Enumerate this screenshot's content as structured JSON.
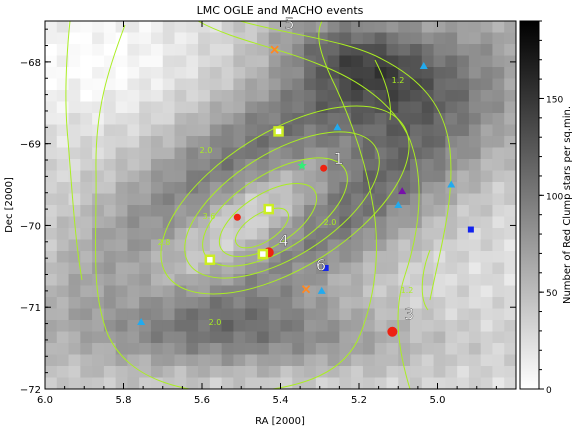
{
  "chart_data": {
    "type": "heatmap",
    "title": "LMC OGLE and MACHO events",
    "xlabel": "RA [2000]",
    "ylabel": "Dec [2000]",
    "colorbar_label": "Number of Red Clump stars per sq.min.",
    "xlim": [
      6.0,
      4.8
    ],
    "ylim": [
      -72.0,
      -67.5
    ],
    "x_ticks": [
      6.0,
      5.8,
      5.6,
      5.4,
      5.2,
      5.0
    ],
    "y_ticks": [
      -68,
      -69,
      -70,
      -71,
      -72
    ],
    "colorbar_range": [
      0,
      190
    ],
    "colorbar_ticks": [
      0,
      50,
      100,
      150
    ],
    "colormap": "white-to-black",
    "grid": false,
    "contour_color": "#aaee22",
    "contour_labels": [
      "2.0",
      "2.8",
      "3.6",
      "2.0",
      "2.0",
      "1.2",
      "1.2"
    ],
    "numbered_labels": [
      {
        "text": "1",
        "x": 5.265,
        "y": -69.25
      },
      {
        "text": "3",
        "x": 5.085,
        "y": -71.15
      },
      {
        "text": "4",
        "x": 5.405,
        "y": -70.25
      },
      {
        "text": "5",
        "x": 5.39,
        "y": -67.6
      },
      {
        "text": "6",
        "x": 5.31,
        "y": -70.55
      }
    ],
    "markers": [
      {
        "shape": "circle",
        "color": "#ee2211",
        "size": "small",
        "x": 5.29,
        "y": -69.3
      },
      {
        "shape": "circle",
        "color": "#ee2211",
        "size": "small",
        "x": 5.51,
        "y": -69.9
      },
      {
        "shape": "circle",
        "color": "#ee2211",
        "size": "large",
        "x": 5.43,
        "y": -70.33
      },
      {
        "shape": "circle",
        "color": "#ee2211",
        "size": "large",
        "x": 5.115,
        "y": -71.3
      },
      {
        "shape": "open-square",
        "color": "#ccee22",
        "x": 5.405,
        "y": -68.85
      },
      {
        "shape": "open-square",
        "color": "#ccee22",
        "x": 5.43,
        "y": -69.8
      },
      {
        "shape": "open-square",
        "color": "#ccee22",
        "x": 5.58,
        "y": -70.42
      },
      {
        "shape": "open-square",
        "color": "#ccee22",
        "x": 5.445,
        "y": -70.35
      },
      {
        "shape": "star",
        "color": "#33ee77",
        "x": 5.345,
        "y": -69.27
      },
      {
        "shape": "x",
        "color": "#ff8822",
        "x": 5.415,
        "y": -67.85
      },
      {
        "shape": "x",
        "color": "#ff8822",
        "x": 5.335,
        "y": -70.78
      },
      {
        "shape": "triangle",
        "color": "#22aaee",
        "x": 5.035,
        "y": -68.05
      },
      {
        "shape": "triangle",
        "color": "#22aaee",
        "x": 5.255,
        "y": -68.8
      },
      {
        "shape": "triangle",
        "color": "#22aaee",
        "x": 5.1,
        "y": -69.75
      },
      {
        "shape": "triangle",
        "color": "#22aaee",
        "x": 4.965,
        "y": -69.5
      },
      {
        "shape": "triangle",
        "color": "#22aaee",
        "x": 5.295,
        "y": -70.8
      },
      {
        "shape": "triangle",
        "color": "#22aaee",
        "x": 5.755,
        "y": -71.18
      },
      {
        "shape": "triangle",
        "color": "#7711aa",
        "x": 5.09,
        "y": -69.58
      },
      {
        "shape": "square",
        "color": "#1122ee",
        "x": 4.915,
        "y": -70.05
      },
      {
        "shape": "square",
        "color": "#1122ee",
        "x": 5.285,
        "y": -70.52
      }
    ]
  }
}
